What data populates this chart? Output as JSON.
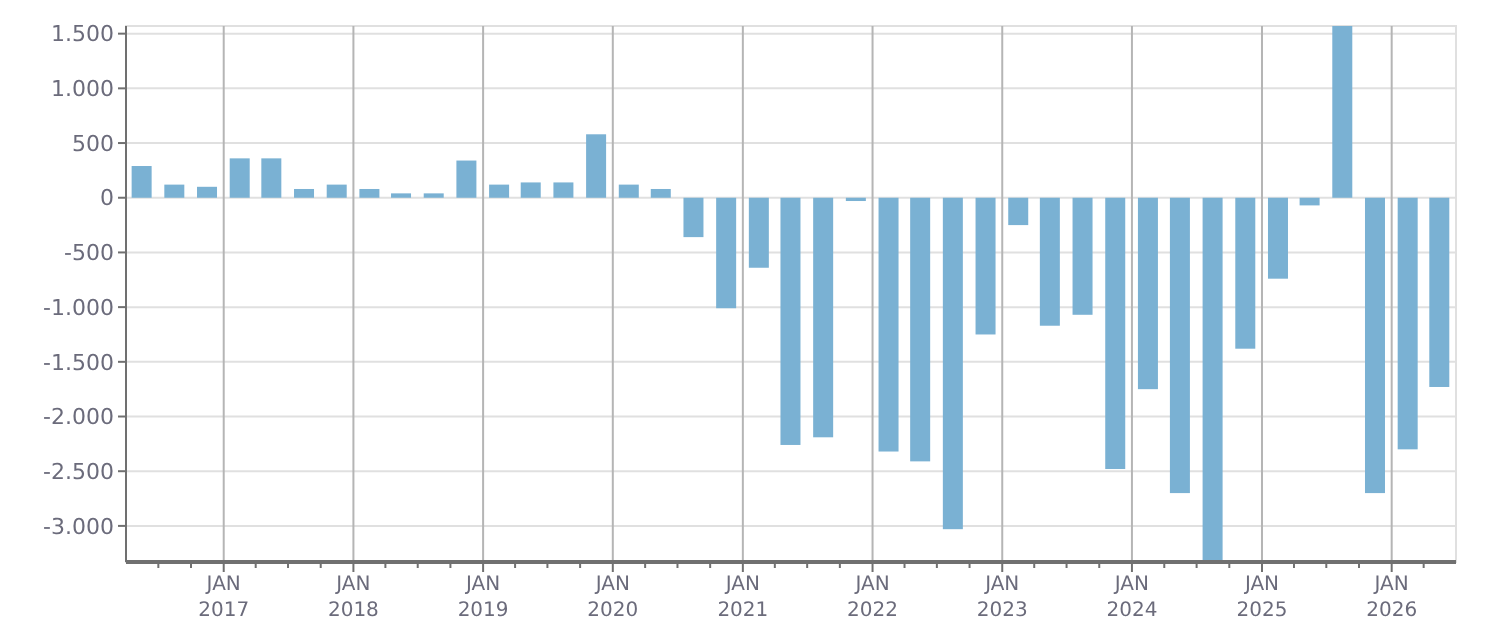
{
  "chart_data": {
    "type": "bar",
    "color": "#7ab1d3",
    "x": [
      "2016-05-15",
      "2016-08-15",
      "2016-11-15",
      "2017-02-15",
      "2017-05-15",
      "2017-08-15",
      "2017-11-15",
      "2018-02-15",
      "2018-05-15",
      "2018-08-15",
      "2018-11-15",
      "2019-02-15",
      "2019-05-15",
      "2019-08-15",
      "2019-11-15",
      "2020-02-15",
      "2020-05-15",
      "2020-08-15",
      "2020-11-15",
      "2021-02-15",
      "2021-05-15",
      "2021-08-15",
      "2021-11-15",
      "2022-02-15",
      "2022-05-15",
      "2022-08-15",
      "2022-11-15",
      "2023-02-15",
      "2023-05-15",
      "2023-08-15",
      "2023-11-15",
      "2024-02-15",
      "2024-05-15",
      "2024-08-15",
      "2024-11-15",
      "2025-02-15",
      "2025-05-15",
      "2025-08-15",
      "2025-11-15",
      "2026-02-15",
      "2026-05-15"
    ],
    "values": [
      290,
      120,
      100,
      360,
      360,
      80,
      120,
      80,
      40,
      40,
      340,
      120,
      140,
      140,
      580,
      120,
      80,
      -360,
      -1010,
      -640,
      -2260,
      -2190,
      -30,
      -2320,
      -2410,
      -3030,
      -1250,
      -250,
      -1170,
      -1070,
      -2480,
      -1750,
      -2700,
      -3330,
      -1380,
      -740,
      -70,
      1570,
      -2700,
      -2300,
      -1730
    ],
    "xlim": [
      "2016-04-01",
      "2026-07-01"
    ],
    "xticks": [
      {
        "value": "2016-07-01",
        "label": null
      },
      {
        "value": "2016-10-01",
        "label": null
      },
      {
        "value": "2017-01-01",
        "label": "JAN\n2017"
      },
      {
        "value": "2017-04-01",
        "label": null
      },
      {
        "value": "2017-07-01",
        "label": null
      },
      {
        "value": "2017-10-01",
        "label": null
      },
      {
        "value": "2018-01-01",
        "label": "JAN\n2018"
      },
      {
        "value": "2018-04-01",
        "label": null
      },
      {
        "value": "2018-07-01",
        "label": null
      },
      {
        "value": "2018-10-01",
        "label": null
      },
      {
        "value": "2019-01-01",
        "label": "JAN\n2019"
      },
      {
        "value": "2019-04-01",
        "label": null
      },
      {
        "value": "2019-07-01",
        "label": null
      },
      {
        "value": "2019-10-01",
        "label": null
      },
      {
        "value": "2020-01-01",
        "label": "JAN\n2020"
      },
      {
        "value": "2020-04-01",
        "label": null
      },
      {
        "value": "2020-07-01",
        "label": null
      },
      {
        "value": "2020-10-01",
        "label": null
      },
      {
        "value": "2021-01-01",
        "label": "JAN\n2021"
      },
      {
        "value": "2021-04-01",
        "label": null
      },
      {
        "value": "2021-07-01",
        "label": null
      },
      {
        "value": "2021-10-01",
        "label": null
      },
      {
        "value": "2022-01-01",
        "label": "JAN\n2022"
      },
      {
        "value": "2022-04-01",
        "label": null
      },
      {
        "value": "2022-07-01",
        "label": null
      },
      {
        "value": "2022-10-01",
        "label": null
      },
      {
        "value": "2023-01-01",
        "label": "JAN\n2023"
      },
      {
        "value": "2023-04-01",
        "label": null
      },
      {
        "value": "2023-07-01",
        "label": null
      },
      {
        "value": "2023-10-01",
        "label": null
      },
      {
        "value": "2024-01-01",
        "label": "JAN\n2024"
      },
      {
        "value": "2024-04-01",
        "label": null
      },
      {
        "value": "2024-07-01",
        "label": null
      },
      {
        "value": "2024-10-01",
        "label": null
      },
      {
        "value": "2025-01-01",
        "label": "JAN\n2025"
      },
      {
        "value": "2025-04-01",
        "label": null
      },
      {
        "value": "2025-07-01",
        "label": null
      },
      {
        "value": "2025-10-01",
        "label": null
      },
      {
        "value": "2026-01-01",
        "label": "JAN\n2026"
      },
      {
        "value": "2026-04-01",
        "label": null
      }
    ],
    "ylim": [
      -3330,
      1570
    ],
    "yticks": [
      {
        "value": -3000,
        "label": "-3.000"
      },
      {
        "value": -2500,
        "label": "-2.500"
      },
      {
        "value": -2000,
        "label": "-2.000"
      },
      {
        "value": -1500,
        "label": "-1.500"
      },
      {
        "value": -1000,
        "label": "-1.000"
      },
      {
        "value": -500,
        "label": "-500"
      },
      0,
      {
        "value": 500,
        "label": "500"
      },
      {
        "value": 1000,
        "label": "1.000"
      },
      {
        "value": 1500,
        "label": "1.500"
      }
    ],
    "grid": true
  }
}
